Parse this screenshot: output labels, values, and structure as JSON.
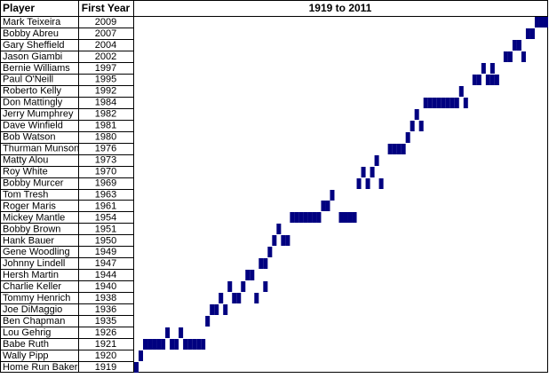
{
  "header": {
    "player": "Player",
    "first_year": "First Year",
    "range": "1919 to 2011"
  },
  "xlim": [
    1919,
    2011
  ],
  "color": "#000080",
  "rows": [
    {
      "player": "Mark Teixeira",
      "first_year": 2009,
      "years": [
        2009,
        2010,
        2011
      ]
    },
    {
      "player": "Bobby Abreu",
      "first_year": 2007,
      "years": [
        2007,
        2008
      ]
    },
    {
      "player": "Gary Sheffield",
      "first_year": 2004,
      "years": [
        2004,
        2005
      ]
    },
    {
      "player": "Jason Giambi",
      "first_year": 2002,
      "years": [
        2002,
        2003,
        2006
      ]
    },
    {
      "player": "Bernie Williams",
      "first_year": 1997,
      "years": [
        1997,
        1999
      ]
    },
    {
      "player": "Paul O'Neill",
      "first_year": 1995,
      "years": [
        1995,
        1996,
        1998,
        1999,
        2000
      ]
    },
    {
      "player": "Roberto Kelly",
      "first_year": 1992,
      "years": [
        1992
      ]
    },
    {
      "player": "Don Mattingly",
      "first_year": 1984,
      "years": [
        1984,
        1985,
        1986,
        1987,
        1988,
        1989,
        1990,
        1991,
        1993
      ]
    },
    {
      "player": "Jerry Mumphrey",
      "first_year": 1982,
      "years": [
        1982
      ]
    },
    {
      "player": "Dave Winfield",
      "first_year": 1981,
      "years": [
        1981,
        1983
      ]
    },
    {
      "player": "Bob Watson",
      "first_year": 1980,
      "years": [
        1980
      ]
    },
    {
      "player": "Thurman Munson",
      "first_year": 1976,
      "years": [
        1976,
        1977,
        1978,
        1979
      ]
    },
    {
      "player": "Matty Alou",
      "first_year": 1973,
      "years": [
        1973
      ]
    },
    {
      "player": "Roy White",
      "first_year": 1970,
      "years": [
        1970,
        1972
      ]
    },
    {
      "player": "Bobby Murcer",
      "first_year": 1969,
      "years": [
        1969,
        1971,
        1974
      ]
    },
    {
      "player": "Tom Tresh",
      "first_year": 1963,
      "years": [
        1963
      ]
    },
    {
      "player": "Roger Maris",
      "first_year": 1961,
      "years": [
        1961,
        1962
      ]
    },
    {
      "player": "Mickey Mantle",
      "first_year": 1954,
      "years": [
        1954,
        1955,
        1956,
        1957,
        1958,
        1959,
        1960,
        1965,
        1966,
        1967,
        1968
      ]
    },
    {
      "player": "Bobby Brown",
      "first_year": 1951,
      "years": [
        1951
      ]
    },
    {
      "player": "Hank Bauer",
      "first_year": 1950,
      "years": [
        1950,
        1952,
        1953
      ]
    },
    {
      "player": "Gene Woodling",
      "first_year": 1949,
      "years": [
        1949
      ]
    },
    {
      "player": "Johnny Lindell",
      "first_year": 1947,
      "years": [
        1947,
        1948
      ]
    },
    {
      "player": "Hersh Martin",
      "first_year": 1944,
      "years": [
        1944,
        1945
      ]
    },
    {
      "player": "Charlie Keller",
      "first_year": 1940,
      "years": [
        1940,
        1943,
        1948
      ]
    },
    {
      "player": "Tommy Henrich",
      "first_year": 1938,
      "years": [
        1938,
        1941,
        1942,
        1946
      ]
    },
    {
      "player": "Joe DiMaggio",
      "first_year": 1936,
      "years": [
        1936,
        1937,
        1939
      ]
    },
    {
      "player": "Ben Chapman",
      "first_year": 1935,
      "years": [
        1935
      ]
    },
    {
      "player": "Lou Gehrig",
      "first_year": 1926,
      "years": [
        1926,
        1929
      ]
    },
    {
      "player": "Babe Ruth",
      "first_year": 1921,
      "years": [
        1921,
        1922,
        1923,
        1924,
        1925,
        1927,
        1928,
        1930,
        1931,
        1932,
        1933,
        1934
      ]
    },
    {
      "player": "Wally Pipp",
      "first_year": 1920,
      "years": [
        1920
      ]
    },
    {
      "player": "Home Run Baker",
      "first_year": 1919,
      "years": [
        1919
      ]
    }
  ]
}
